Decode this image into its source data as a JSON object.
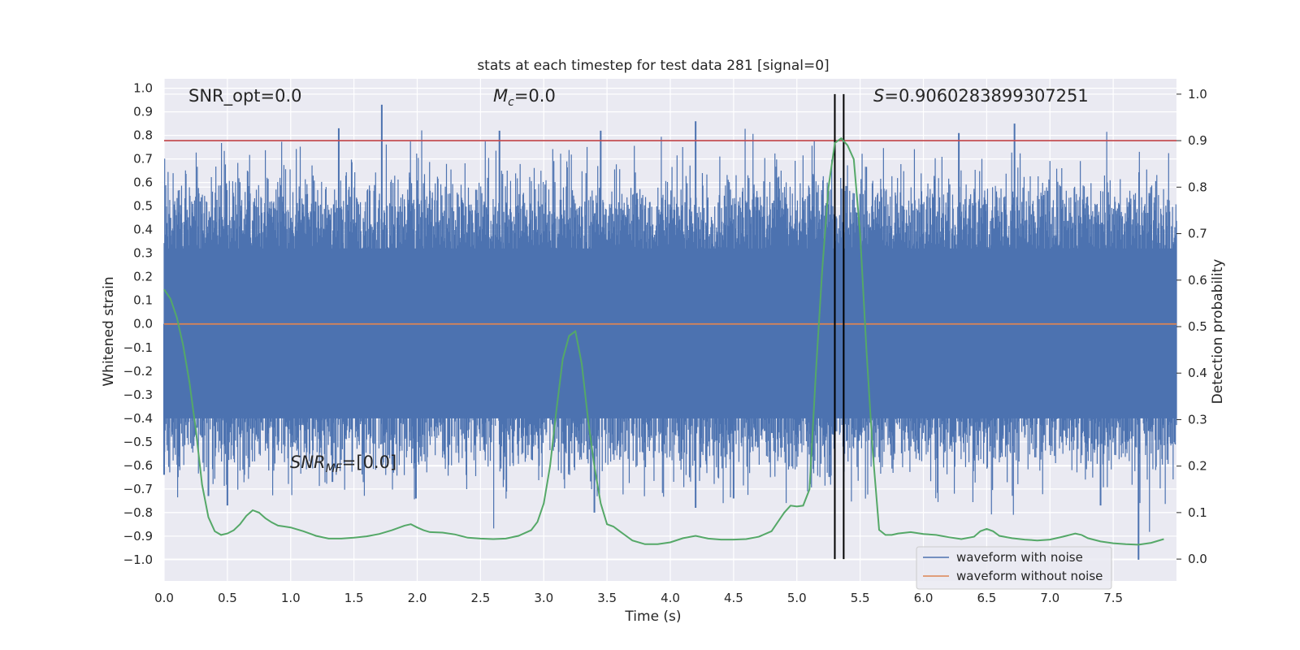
{
  "chart_data": {
    "type": "line",
    "title": "stats at each timestep for test data 281 [signal=0]",
    "xlabel": "Time (s)",
    "ylabel": "Whitened strain",
    "y2label": "Detection probability",
    "xlim": [
      0.0,
      8.0
    ],
    "ylim": [
      -1.09,
      1.04
    ],
    "y2lim": [
      -0.047,
      1.033
    ],
    "xticks": [
      "0.0",
      "0.5",
      "1.0",
      "1.5",
      "2.0",
      "2.5",
      "3.0",
      "3.5",
      "4.0",
      "4.5",
      "5.0",
      "5.5",
      "6.0",
      "6.5",
      "7.0",
      "7.5"
    ],
    "yticks": [
      "1.0",
      "0.9",
      "0.8",
      "0.7",
      "0.6",
      "0.5",
      "0.4",
      "0.3",
      "0.2",
      "0.1",
      "0.0",
      "−0.1",
      "−0.2",
      "−0.3",
      "−0.4",
      "−0.5",
      "−0.6",
      "−0.7",
      "−0.8",
      "−0.9",
      "−1.0"
    ],
    "y2ticks": [
      "1.0",
      "0.9",
      "0.8",
      "0.7",
      "0.6",
      "0.5",
      "0.4",
      "0.3",
      "0.2",
      "0.1",
      "0.0"
    ],
    "grid": true,
    "legend_position": "lower right",
    "annotations": {
      "snr_opt": "SNR_opt=0.0",
      "mc_sym": "M",
      "mc_sub": "c",
      "mc_val": "=0.0",
      "s_sym": "S",
      "s_val": "=0.9060283899307251",
      "snr_mf_sym": "SNR",
      "snr_mf_sub": "MF",
      "snr_mf_val": "=[0.0]"
    },
    "threshold_y2": 0.9,
    "vlines_x": [
      5.3,
      5.37
    ],
    "series": [
      {
        "name": "waveform with noise",
        "color": "#4c72b0",
        "noise_band": [
          -0.4,
          0.32
        ],
        "peaks_up": [
          [
            1.38,
            0.83
          ],
          [
            1.72,
            0.93
          ],
          [
            2.65,
            0.82
          ],
          [
            3.45,
            0.82
          ],
          [
            4.2,
            0.86
          ],
          [
            6.28,
            0.81
          ],
          [
            6.72,
            0.85
          ],
          [
            0.05,
            0.45
          ]
        ],
        "peaks_down": [
          [
            0.35,
            -0.73
          ],
          [
            0.5,
            -0.77
          ],
          [
            1.33,
            -0.67
          ],
          [
            1.99,
            -0.74
          ],
          [
            3.4,
            -0.8
          ],
          [
            4.2,
            -0.78
          ],
          [
            4.5,
            -0.74
          ],
          [
            7.4,
            -0.77
          ],
          [
            7.7,
            -1.0
          ],
          [
            0.0,
            -0.64
          ]
        ]
      },
      {
        "name": "waveform without noise",
        "color": "#dd8452",
        "y": 0.0
      },
      {
        "name": "detection probability",
        "color": "#55a868",
        "axis": "right",
        "x": [
          0.0,
          0.05,
          0.1,
          0.15,
          0.2,
          0.25,
          0.3,
          0.35,
          0.4,
          0.45,
          0.5,
          0.55,
          0.6,
          0.65,
          0.7,
          0.75,
          0.8,
          0.85,
          0.9,
          0.95,
          1.0,
          1.1,
          1.2,
          1.3,
          1.4,
          1.5,
          1.6,
          1.7,
          1.8,
          1.9,
          1.95,
          2.0,
          2.05,
          2.1,
          2.2,
          2.3,
          2.4,
          2.5,
          2.6,
          2.7,
          2.8,
          2.9,
          2.95,
          3.0,
          3.05,
          3.1,
          3.15,
          3.2,
          3.25,
          3.3,
          3.35,
          3.4,
          3.45,
          3.5,
          3.55,
          3.6,
          3.65,
          3.7,
          3.8,
          3.9,
          4.0,
          4.1,
          4.2,
          4.3,
          4.4,
          4.5,
          4.6,
          4.7,
          4.8,
          4.85,
          4.9,
          4.95,
          5.0,
          5.05,
          5.1,
          5.15,
          5.2,
          5.25,
          5.3,
          5.35,
          5.4,
          5.45,
          5.5,
          5.55,
          5.6,
          5.65,
          5.7,
          5.75,
          5.8,
          5.9,
          6.0,
          6.1,
          6.2,
          6.3,
          6.4,
          6.45,
          6.5,
          6.55,
          6.6,
          6.7,
          6.8,
          6.9,
          7.0,
          7.1,
          7.2,
          7.25,
          7.3,
          7.4,
          7.5,
          7.6,
          7.7,
          7.8,
          7.9
        ],
        "y": [
          0.58,
          0.56,
          0.52,
          0.46,
          0.38,
          0.28,
          0.16,
          0.09,
          0.06,
          0.052,
          0.055,
          0.062,
          0.075,
          0.093,
          0.105,
          0.1,
          0.088,
          0.079,
          0.072,
          0.07,
          0.068,
          0.06,
          0.05,
          0.044,
          0.044,
          0.046,
          0.049,
          0.054,
          0.062,
          0.072,
          0.075,
          0.068,
          0.062,
          0.058,
          0.057,
          0.053,
          0.046,
          0.044,
          0.043,
          0.044,
          0.05,
          0.062,
          0.08,
          0.12,
          0.2,
          0.32,
          0.43,
          0.48,
          0.49,
          0.42,
          0.3,
          0.2,
          0.12,
          0.075,
          0.07,
          0.06,
          0.05,
          0.04,
          0.032,
          0.032,
          0.036,
          0.045,
          0.05,
          0.044,
          0.042,
          0.042,
          0.043,
          0.048,
          0.06,
          0.08,
          0.1,
          0.115,
          0.113,
          0.115,
          0.15,
          0.4,
          0.62,
          0.8,
          0.895,
          0.905,
          0.89,
          0.86,
          0.7,
          0.45,
          0.23,
          0.063,
          0.052,
          0.052,
          0.055,
          0.058,
          0.054,
          0.052,
          0.047,
          0.043,
          0.048,
          0.06,
          0.065,
          0.06,
          0.05,
          0.045,
          0.042,
          0.04,
          0.042,
          0.048,
          0.055,
          0.052,
          0.045,
          0.038,
          0.034,
          0.032,
          0.031,
          0.035,
          0.043
        ]
      }
    ]
  }
}
